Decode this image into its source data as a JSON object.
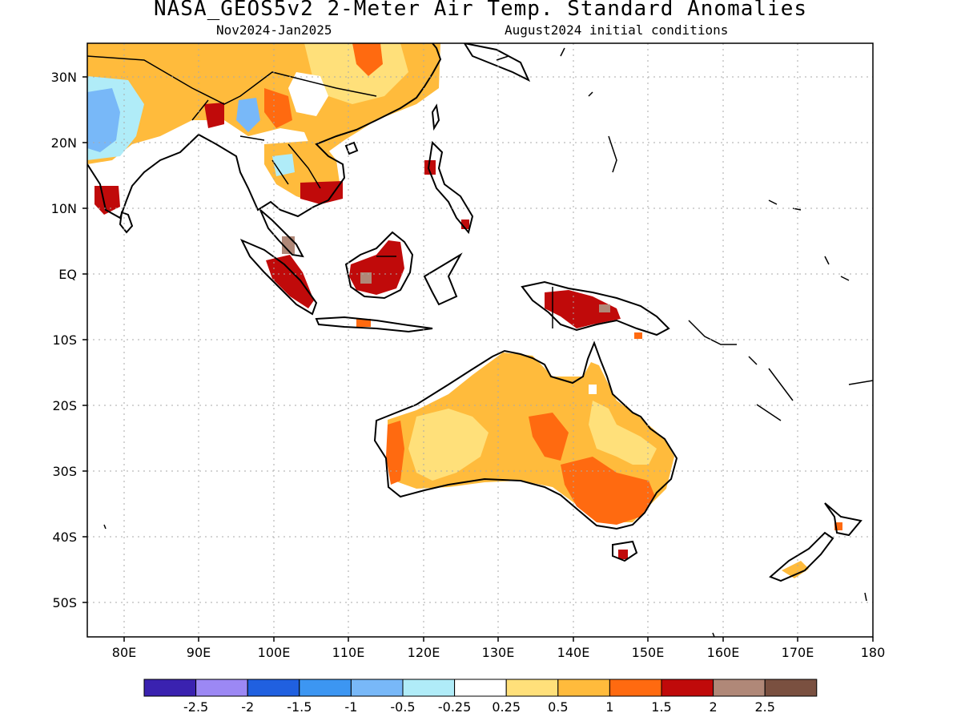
{
  "title": "NASA_GEOS5v2 2-Meter Air Temp. Standard Anomalies",
  "subtitle_left": "Nov2024-Jan2025",
  "subtitle_right": "August2024 initial conditions",
  "map": {
    "lon_range": [
      75,
      180
    ],
    "lat_range": [
      -55,
      35
    ],
    "lon_ticks": [
      "80E",
      "90E",
      "100E",
      "110E",
      "120E",
      "130E",
      "140E",
      "150E",
      "160E",
      "170E",
      "180"
    ],
    "lat_ticks": [
      "30N",
      "20N",
      "10N",
      "EQ",
      "10S",
      "20S",
      "30S",
      "40S",
      "50S"
    ]
  },
  "legend": {
    "colors": [
      "#3a22b0",
      "#9c88f4",
      "#2060e0",
      "#3c96f2",
      "#78b8f8",
      "#b0ecf8",
      "#ffffff",
      "#ffe07a",
      "#ffbb3c",
      "#ff6a10",
      "#c00a0a",
      "#b08878",
      "#7a5040"
    ],
    "labels": [
      "-2.5",
      "-2",
      "-1.5",
      "-1",
      "-0.5",
      "-0.25",
      "0.25",
      "0.5",
      "1",
      "1.5",
      "2",
      "2.5"
    ]
  }
}
